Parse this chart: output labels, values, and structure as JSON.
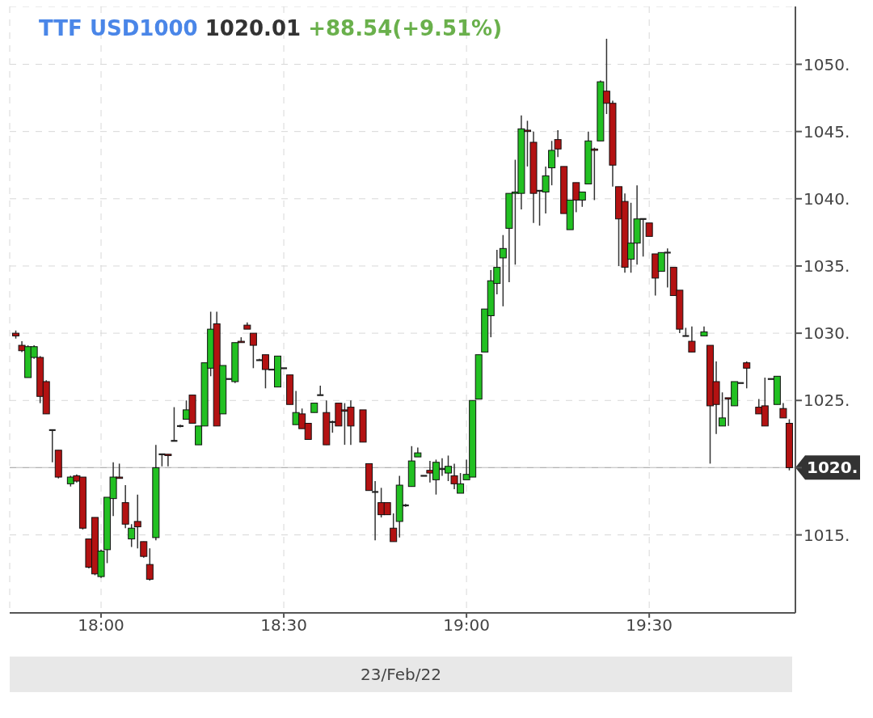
{
  "chart_data": {
    "type": "candlestick",
    "title": "TTF USD1000 1020.01 +88.54(+9.51%)",
    "xlabel": "23/Feb/22",
    "xlim": [
      "--02-23T17:45",
      "--02-23T19:54"
    ],
    "xticks": [
      {
        "value": "--02-23T18:00",
        "label": "18:00"
      },
      {
        "value": "--02-23T18:30",
        "label": "18:30"
      },
      {
        "value": "--02-23T19:00",
        "label": "19:00"
      },
      {
        "value": "--02-23T19:30",
        "label": "19:30"
      }
    ],
    "ylim": [
      1009.2,
      1054.3
    ],
    "yticks": [
      {
        "value": 1015,
        "label": "1015."
      },
      {
        "value": 1020,
        "label": null
      },
      {
        "value": 1025,
        "label": "1025."
      },
      {
        "value": 1030,
        "label": "1030."
      },
      {
        "value": 1035,
        "label": "1035."
      },
      {
        "value": 1040,
        "label": "1040."
      },
      {
        "value": 1045,
        "label": "1045."
      },
      {
        "value": 1050,
        "label": "1050."
      }
    ],
    "grid": true,
    "ref_lines": [
      {
        "axis": "y",
        "value": 1020.01,
        "label": "1020.",
        "color": "#333333"
      }
    ],
    "x": [
      "--02-23T17:46",
      "--02-23T17:47",
      "--02-23T17:48",
      "--02-23T17:49",
      "--02-23T17:50",
      "--02-23T17:51",
      "--02-23T17:52",
      "--02-23T17:53",
      "--02-23T17:55",
      "--02-23T17:56",
      "--02-23T17:57",
      "--02-23T17:58",
      "--02-23T17:59",
      "--02-23T18:00",
      "--02-23T18:01",
      "--02-23T18:02",
      "--02-23T18:03",
      "--02-23T18:04",
      "--02-23T18:05",
      "--02-23T18:06",
      "--02-23T18:07",
      "--02-23T18:08",
      "--02-23T18:09",
      "--02-23T18:10",
      "--02-23T18:11",
      "--02-23T18:12",
      "--02-23T18:13",
      "--02-23T18:14",
      "--02-23T18:15",
      "--02-23T18:16",
      "--02-23T18:17",
      "--02-23T18:18",
      "--02-23T18:19",
      "--02-23T18:20",
      "--02-23T18:21",
      "--02-23T18:22",
      "--02-23T18:23",
      "--02-23T18:24",
      "--02-23T18:25",
      "--02-23T18:26",
      "--02-23T18:27",
      "--02-23T18:28",
      "--02-23T18:29",
      "--02-23T18:30",
      "--02-23T18:31",
      "--02-23T18:32",
      "--02-23T18:33",
      "--02-23T18:34",
      "--02-23T18:35",
      "--02-23T18:36",
      "--02-23T18:37",
      "--02-23T18:38",
      "--02-23T18:39",
      "--02-23T18:40",
      "--02-23T18:41",
      "--02-23T18:43",
      "--02-23T18:44",
      "--02-23T18:45",
      "--02-23T18:46",
      "--02-23T18:47",
      "--02-23T18:48",
      "--02-23T18:49",
      "--02-23T18:50",
      "--02-23T18:51",
      "--02-23T18:52",
      "--02-23T18:53",
      "--02-23T18:54",
      "--02-23T18:55",
      "--02-23T18:56",
      "--02-23T18:57",
      "--02-23T18:58",
      "--02-23T18:59",
      "--02-23T19:00",
      "--02-23T19:01",
      "--02-23T19:02",
      "--02-23T19:03",
      "--02-23T19:04",
      "--02-23T19:05",
      "--02-23T19:06",
      "--02-23T19:07",
      "--02-23T19:08",
      "--02-23T19:09",
      "--02-23T19:10",
      "--02-23T19:11",
      "--02-23T19:12",
      "--02-23T19:13",
      "--02-23T19:14",
      "--02-23T19:15",
      "--02-23T19:16",
      "--02-23T19:17",
      "--02-23T19:18",
      "--02-23T19:19",
      "--02-23T19:20",
      "--02-23T19:21",
      "--02-23T19:22",
      "--02-23T19:23",
      "--02-23T19:24",
      "--02-23T19:25",
      "--02-23T19:26",
      "--02-23T19:27",
      "--02-23T19:28",
      "--02-23T19:29",
      "--02-23T19:30",
      "--02-23T19:31",
      "--02-23T19:32",
      "--02-23T19:33",
      "--02-23T19:34",
      "--02-23T19:35",
      "--02-23T19:36",
      "--02-23T19:37",
      "--02-23T19:39",
      "--02-23T19:40",
      "--02-23T19:41",
      "--02-23T19:42",
      "--02-23T19:43",
      "--02-23T19:44",
      "--02-23T19:45",
      "--02-23T19:46",
      "--02-23T19:48",
      "--02-23T19:49",
      "--02-23T19:50",
      "--02-23T19:51",
      "--02-23T19:52",
      "--02-23T19:53"
    ],
    "ohlc": [
      [
        1030,
        1030.2,
        1029.6,
        1029.8
      ],
      [
        1029.1,
        1029.4,
        1028.6,
        1028.7
      ],
      [
        1026.7,
        1029.1,
        1026.7,
        1029.0
      ],
      [
        1028.2,
        1029.1,
        1028.1,
        1029.0
      ],
      [
        1028.2,
        1028.3,
        1024.8,
        1025.3
      ],
      [
        1026.4,
        1026.5,
        1024.0,
        1024.0
      ],
      [
        1022.8,
        1022.8,
        1020.4,
        1022.8
      ],
      [
        1021.3,
        1021.3,
        1019.2,
        1019.3
      ],
      [
        1018.8,
        1019.4,
        1018.6,
        1019.3
      ],
      [
        1019.4,
        1019.5,
        1018.9,
        1019.0
      ],
      [
        1019.3,
        1019.3,
        1015.4,
        1015.5
      ],
      [
        1014.7,
        1014.7,
        1012.5,
        1012.6
      ],
      [
        1016.3,
        1016.3,
        1012.0,
        1012.1
      ],
      [
        1011.9,
        1013.9,
        1011.8,
        1013.8
      ],
      [
        1013.9,
        1017.8,
        1012.9,
        1017.8
      ],
      [
        1017.7,
        1020.4,
        1016.4,
        1019.3
      ],
      [
        1019.3,
        1020.3,
        1019.2,
        1019.2
      ],
      [
        1017.4,
        1018.7,
        1015.5,
        1015.8
      ],
      [
        1014.7,
        1015.8,
        1014.1,
        1015.5
      ],
      [
        1016.0,
        1018.0,
        1014.0,
        1015.6
      ],
      [
        1014.5,
        1014.5,
        1013.3,
        1013.4
      ],
      [
        1012.8,
        1014.0,
        1011.6,
        1011.7
      ],
      [
        1014.8,
        1021.7,
        1014.6,
        1020.0
      ],
      [
        1021.0,
        1021.0,
        1020.1,
        1021.0
      ],
      [
        1021.0,
        1021.0,
        1020.1,
        1020.9
      ],
      [
        1022.0,
        1024.5,
        1022.0,
        1022.0
      ],
      [
        1023.1,
        1023.2,
        1023.0,
        1023.1
      ],
      [
        1023.6,
        1025.0,
        1023.6,
        1024.3
      ],
      [
        1025.4,
        1025.4,
        1023.3,
        1023.3
      ],
      [
        1021.7,
        1023.1,
        1021.7,
        1023.1
      ],
      [
        1023.1,
        1027.8,
        1023.1,
        1027.8
      ],
      [
        1027.4,
        1031.6,
        1026.8,
        1030.3
      ],
      [
        1030.7,
        1031.6,
        1023.1,
        1023.1
      ],
      [
        1024.0,
        1027.6,
        1024.0,
        1027.6
      ],
      [
        1026.6,
        1026.6,
        1026.6,
        1026.6
      ],
      [
        1026.4,
        1029.3,
        1026.3,
        1029.3
      ],
      [
        1029.4,
        1029.7,
        1029.3,
        1029.3
      ],
      [
        1030.6,
        1030.8,
        1030.3,
        1030.3
      ],
      [
        1030.0,
        1030.0,
        1027.4,
        1029.1
      ],
      [
        1028.0,
        1028.1,
        1028.0,
        1028.0
      ],
      [
        1028.4,
        1028.4,
        1025.9,
        1027.3
      ],
      [
        1027.3,
        1027.3,
        1027.3,
        1027.3
      ],
      [
        1026.0,
        1028.3,
        1026.0,
        1028.3
      ],
      [
        1027.4,
        1027.4,
        1027.4,
        1027.4
      ],
      [
        1026.9,
        1026.9,
        1024.7,
        1024.7
      ],
      [
        1023.2,
        1025.7,
        1023.2,
        1024.1
      ],
      [
        1024.0,
        1024.4,
        1022.9,
        1022.9
      ],
      [
        1023.3,
        1023.3,
        1022.1,
        1022.1
      ],
      [
        1024.1,
        1024.8,
        1024.1,
        1024.8
      ],
      [
        1025.4,
        1026.1,
        1025.4,
        1025.4
      ],
      [
        1024.1,
        1025.0,
        1021.7,
        1021.7
      ],
      [
        1023.4,
        1023.5,
        1022.6,
        1023.4
      ],
      [
        1024.8,
        1024.8,
        1023.1,
        1023.1
      ],
      [
        1024.3,
        1024.8,
        1021.7,
        1024.2
      ],
      [
        1024.5,
        1025.0,
        1021.7,
        1023.1
      ],
      [
        1024.3,
        1024.3,
        1021.9,
        1021.9
      ],
      [
        1020.3,
        1020.3,
        1018.3,
        1018.3
      ],
      [
        1018.2,
        1019.0,
        1014.6,
        1018.2
      ],
      [
        1017.4,
        1018.5,
        1016.3,
        1016.5
      ],
      [
        1017.4,
        1017.4,
        1016.5,
        1016.5
      ],
      [
        1015.5,
        1016.6,
        1014.5,
        1014.5
      ],
      [
        1016.0,
        1019.4,
        1014.8,
        1018.7
      ],
      [
        1017.2,
        1017.3,
        1017.1,
        1017.2
      ],
      [
        1018.6,
        1021.6,
        1018.6,
        1020.5
      ],
      [
        1020.8,
        1021.5,
        1020.8,
        1021.1
      ],
      [
        1019.4,
        1019.4,
        1019.4,
        1019.4
      ],
      [
        1019.8,
        1020.5,
        1018.9,
        1019.6
      ],
      [
        1019.1,
        1020.6,
        1018.0,
        1020.4
      ],
      [
        1019.9,
        1020.7,
        1019.4,
        1019.9
      ],
      [
        1019.6,
        1020.9,
        1019.0,
        1020.1
      ],
      [
        1019.4,
        1020.3,
        1018.4,
        1018.8
      ],
      [
        1018.1,
        1019.6,
        1018.1,
        1018.8
      ],
      [
        1019.1,
        1020.6,
        1019.1,
        1019.5
      ],
      [
        1019.3,
        1025.0,
        1019.3,
        1025.0
      ],
      [
        1025.1,
        1028.4,
        1025.1,
        1028.4
      ],
      [
        1028.6,
        1031.8,
        1028.6,
        1031.8
      ],
      [
        1031.3,
        1034.7,
        1029.7,
        1033.9
      ],
      [
        1033.7,
        1036.2,
        1032.9,
        1034.9
      ],
      [
        1035.6,
        1037.3,
        1032.0,
        1036.3
      ],
      [
        1037.8,
        1040.4,
        1033.8,
        1040.4
      ],
      [
        1040.4,
        1042.9,
        1035.1,
        1040.5
      ],
      [
        1040.4,
        1046.2,
        1039.2,
        1045.2
      ],
      [
        1045.1,
        1045.8,
        1042.4,
        1045.0
      ],
      [
        1044.2,
        1045.0,
        1038.2,
        1040.4
      ],
      [
        1040.6,
        1040.6,
        1038.0,
        1040.6
      ],
      [
        1040.5,
        1042.4,
        1038.9,
        1041.7
      ],
      [
        1042.3,
        1044.3,
        1041.0,
        1043.6
      ],
      [
        1044.4,
        1045.1,
        1043.1,
        1043.7
      ],
      [
        1042.4,
        1042.4,
        1038.9,
        1038.9
      ],
      [
        1037.7,
        1039.9,
        1037.7,
        1039.9
      ],
      [
        1041.2,
        1041.2,
        1039.0,
        1039.9
      ],
      [
        1039.9,
        1040.5,
        1039.4,
        1040.5
      ],
      [
        1041.1,
        1045.0,
        1041.1,
        1044.3
      ],
      [
        1043.7,
        1043.8,
        1039.9,
        1043.6
      ],
      [
        1044.3,
        1048.8,
        1044.3,
        1048.7
      ],
      [
        1048.0,
        1051.9,
        1046.3,
        1047.1
      ],
      [
        1047.1,
        1047.3,
        1040.9,
        1042.5
      ],
      [
        1040.9,
        1040.9,
        1035.0,
        1038.5
      ],
      [
        1039.8,
        1040.4,
        1034.5,
        1034.9
      ],
      [
        1035.5,
        1039.7,
        1034.5,
        1036.7
      ],
      [
        1036.7,
        1041.0,
        1035.1,
        1038.5
      ],
      [
        1038.5,
        1038.5,
        1035.7,
        1038.5
      ],
      [
        1038.2,
        1038.2,
        1037.2,
        1037.2
      ],
      [
        1035.9,
        1035.9,
        1032.8,
        1034.1
      ],
      [
        1034.6,
        1036.0,
        1034.6,
        1036.0
      ],
      [
        1036.0,
        1036.3,
        1033.4,
        1036.0
      ],
      [
        1034.9,
        1034.9,
        1032.8,
        1032.8
      ],
      [
        1033.2,
        1033.2,
        1030.0,
        1030.3
      ],
      [
        1029.8,
        1030.4,
        1029.8,
        1029.8
      ],
      [
        1029.4,
        1030.5,
        1028.6,
        1028.6
      ],
      [
        1029.8,
        1030.5,
        1029.8,
        1030.1
      ],
      [
        1029.1,
        1029.1,
        1020.3,
        1024.6
      ],
      [
        1026.4,
        1027.9,
        1022.5,
        1024.7
      ],
      [
        1023.1,
        1025.6,
        1023.1,
        1023.7
      ],
      [
        1025.2,
        1025.2,
        1023.1,
        1025.1
      ],
      [
        1024.6,
        1026.4,
        1024.6,
        1026.4
      ],
      [
        1026.3,
        1026.3,
        1026.3,
        1026.3
      ],
      [
        1027.8,
        1027.9,
        1025.9,
        1027.4
      ],
      [
        1024.5,
        1025.1,
        1024.0,
        1024.0
      ],
      [
        1024.6,
        1026.7,
        1023.1,
        1023.1
      ],
      [
        1026.6,
        1026.6,
        1026.6,
        1026.6
      ],
      [
        1024.7,
        1026.8,
        1024.7,
        1026.8
      ],
      [
        1024.4,
        1024.8,
        1023.7,
        1023.7
      ],
      [
        1023.3,
        1023.6,
        1019.8,
        1020.0
      ]
    ]
  }
}
